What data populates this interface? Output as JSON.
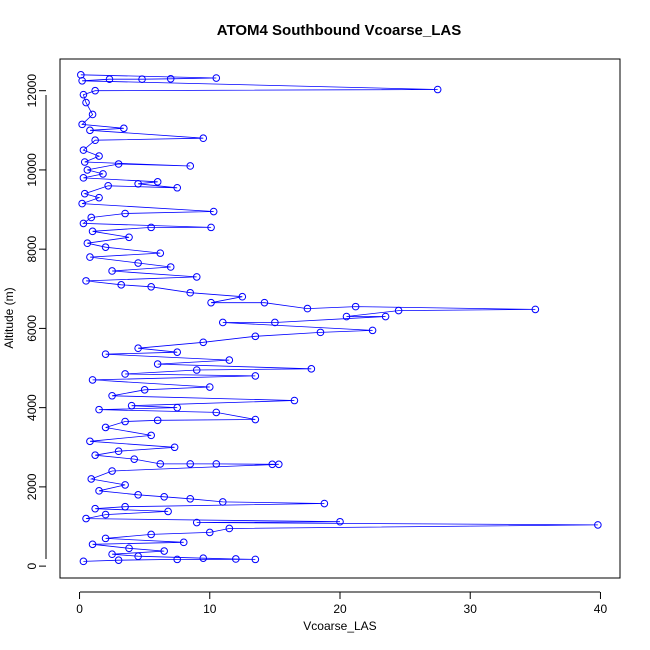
{
  "chart_data": {
    "type": "scatter",
    "title": "ATOM4 Southbound Vcoarse_LAS",
    "xlabel": "Vcoarse_LAS",
    "ylabel": "Altitude (m)",
    "xlim": [
      -1.5,
      41.5
    ],
    "ylim": [
      -300,
      12800
    ],
    "x_ticks": [
      0,
      10,
      20,
      30,
      40
    ],
    "y_ticks": [
      0,
      2000,
      4000,
      6000,
      8000,
      10000,
      12000
    ],
    "grid": false,
    "legend": "none",
    "color": "#0000ff",
    "marker": "open-circle",
    "connected": true,
    "points": [
      [
        0.1,
        12400
      ],
      [
        10.5,
        12320
      ],
      [
        7.0,
        12300
      ],
      [
        4.8,
        12290
      ],
      [
        2.3,
        12290
      ],
      [
        0.2,
        12250
      ],
      [
        27.5,
        12030
      ],
      [
        1.2,
        12000
      ],
      [
        0.3,
        11900
      ],
      [
        0.5,
        11700
      ],
      [
        1.0,
        11400
      ],
      [
        0.2,
        11150
      ],
      [
        3.4,
        11050
      ],
      [
        0.8,
        11000
      ],
      [
        9.5,
        10800
      ],
      [
        1.2,
        10750
      ],
      [
        0.3,
        10500
      ],
      [
        1.5,
        10350
      ],
      [
        0.4,
        10200
      ],
      [
        8.5,
        10100
      ],
      [
        3.0,
        10150
      ],
      [
        0.6,
        10000
      ],
      [
        1.8,
        9900
      ],
      [
        0.3,
        9800
      ],
      [
        6.0,
        9700
      ],
      [
        4.5,
        9650
      ],
      [
        7.5,
        9550
      ],
      [
        2.2,
        9600
      ],
      [
        0.4,
        9400
      ],
      [
        1.5,
        9300
      ],
      [
        0.2,
        9150
      ],
      [
        10.3,
        8950
      ],
      [
        3.5,
        8900
      ],
      [
        0.9,
        8800
      ],
      [
        0.3,
        8650
      ],
      [
        10.1,
        8550
      ],
      [
        5.5,
        8550
      ],
      [
        1.0,
        8450
      ],
      [
        3.8,
        8300
      ],
      [
        0.6,
        8150
      ],
      [
        2.0,
        8050
      ],
      [
        6.2,
        7900
      ],
      [
        0.8,
        7800
      ],
      [
        4.5,
        7650
      ],
      [
        7.0,
        7550
      ],
      [
        2.5,
        7450
      ],
      [
        9.0,
        7300
      ],
      [
        0.5,
        7200
      ],
      [
        3.2,
        7100
      ],
      [
        5.5,
        7050
      ],
      [
        8.5,
        6900
      ],
      [
        12.5,
        6800
      ],
      [
        10.1,
        6650
      ],
      [
        14.2,
        6650
      ],
      [
        17.5,
        6500
      ],
      [
        21.2,
        6550
      ],
      [
        35.0,
        6480
      ],
      [
        24.5,
        6450
      ],
      [
        20.5,
        6300
      ],
      [
        23.5,
        6300
      ],
      [
        15.0,
        6150
      ],
      [
        11.0,
        6150
      ],
      [
        22.5,
        5950
      ],
      [
        18.5,
        5900
      ],
      [
        13.5,
        5800
      ],
      [
        9.5,
        5650
      ],
      [
        4.5,
        5500
      ],
      [
        7.5,
        5400
      ],
      [
        2.0,
        5350
      ],
      [
        11.5,
        5200
      ],
      [
        6.0,
        5100
      ],
      [
        17.8,
        4980
      ],
      [
        9.0,
        4950
      ],
      [
        3.5,
        4850
      ],
      [
        13.5,
        4800
      ],
      [
        1.0,
        4700
      ],
      [
        10.0,
        4520
      ],
      [
        5.0,
        4450
      ],
      [
        2.5,
        4300
      ],
      [
        16.5,
        4180
      ],
      [
        4.0,
        4050
      ],
      [
        7.5,
        4000
      ],
      [
        1.5,
        3950
      ],
      [
        10.5,
        3880
      ],
      [
        13.5,
        3700
      ],
      [
        6.0,
        3680
      ],
      [
        3.5,
        3650
      ],
      [
        2.0,
        3500
      ],
      [
        5.5,
        3300
      ],
      [
        0.8,
        3150
      ],
      [
        7.3,
        3000
      ],
      [
        3.0,
        2900
      ],
      [
        1.2,
        2800
      ],
      [
        4.2,
        2700
      ],
      [
        6.2,
        2580
      ],
      [
        8.5,
        2580
      ],
      [
        10.5,
        2580
      ],
      [
        14.8,
        2570
      ],
      [
        15.3,
        2570
      ],
      [
        2.5,
        2400
      ],
      [
        0.9,
        2200
      ],
      [
        3.5,
        2050
      ],
      [
        1.5,
        1900
      ],
      [
        4.5,
        1800
      ],
      [
        6.5,
        1750
      ],
      [
        8.5,
        1700
      ],
      [
        11.0,
        1620
      ],
      [
        18.8,
        1580
      ],
      [
        3.5,
        1500
      ],
      [
        1.2,
        1450
      ],
      [
        6.8,
        1380
      ],
      [
        2.0,
        1300
      ],
      [
        0.5,
        1200
      ],
      [
        20.0,
        1120
      ],
      [
        9.0,
        1100
      ],
      [
        39.8,
        1040
      ],
      [
        11.5,
        950
      ],
      [
        10.0,
        850
      ],
      [
        5.5,
        800
      ],
      [
        2.0,
        700
      ],
      [
        8.0,
        600
      ],
      [
        1.0,
        550
      ],
      [
        3.8,
        450
      ],
      [
        6.5,
        380
      ],
      [
        2.5,
        300
      ],
      [
        4.5,
        250
      ],
      [
        9.5,
        200
      ],
      [
        12.0,
        180
      ],
      [
        13.5,
        170
      ],
      [
        7.5,
        170
      ],
      [
        3.0,
        150
      ],
      [
        0.3,
        120
      ]
    ]
  }
}
